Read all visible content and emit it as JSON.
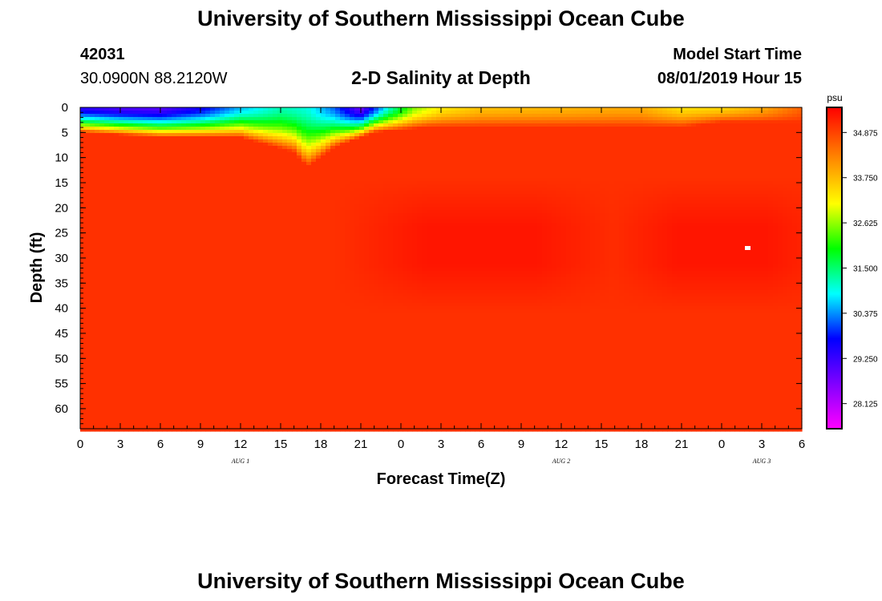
{
  "header": {
    "main_title": "University of Southern Mississippi Ocean Cube",
    "station_id": "42031",
    "coordinates": "30.0900N 88.2120W",
    "plot_title": "2-D Salinity at Depth",
    "start_label": "Model Start Time",
    "start_value": "08/01/2019 Hour 15",
    "footer_title": "University of Southern Mississippi Ocean Cube"
  },
  "chart_data": {
    "type": "heatmap",
    "title": "2-D Salinity at Depth",
    "xlabel": "Forecast Time(Z)",
    "ylabel": "Depth (ft)",
    "x_ticks": [
      "0",
      "3",
      "6",
      "9",
      "12",
      "15",
      "18",
      "21",
      "0",
      "3",
      "6",
      "9",
      "12",
      "15",
      "18",
      "21",
      "0",
      "3",
      "6"
    ],
    "x_range_hours": [
      0,
      54
    ],
    "date_labels": [
      {
        "label": "AUG 1",
        "hour": 12
      },
      {
        "label": "AUG 2",
        "hour": 36
      },
      {
        "label": "AUG 3",
        "hour": 51
      }
    ],
    "y_ticks": [
      0,
      5,
      10,
      15,
      20,
      25,
      30,
      35,
      40,
      45,
      50,
      55,
      60
    ],
    "y_range": [
      0,
      64
    ],
    "colorbar": {
      "unit": "psu",
      "min": 27.5,
      "max": 35.5,
      "tick_values": [
        28.125,
        29.25,
        30.375,
        31.5,
        32.625,
        33.75,
        34.875
      ],
      "tick_labels": [
        "28.125",
        "29.250",
        "30.375",
        "31.500",
        "32.625",
        "33.750",
        "34.875"
      ]
    },
    "surface_salinity_profile": [
      {
        "hour": 0,
        "psu": 29.4
      },
      {
        "hour": 3,
        "psu": 29.1
      },
      {
        "hour": 6,
        "psu": 29.0
      },
      {
        "hour": 9,
        "psu": 29.6
      },
      {
        "hour": 12,
        "psu": 30.6
      },
      {
        "hour": 15,
        "psu": 31.2
      },
      {
        "hour": 17,
        "psu": 31.0
      },
      {
        "hour": 19,
        "psu": 30.2
      },
      {
        "hour": 21,
        "psu": 28.8
      },
      {
        "hour": 23,
        "psu": 31.0
      },
      {
        "hour": 25,
        "psu": 32.6
      },
      {
        "hour": 27,
        "psu": 33.3
      },
      {
        "hour": 30,
        "psu": 33.7
      },
      {
        "hour": 36,
        "psu": 33.8
      },
      {
        "hour": 40,
        "psu": 33.9
      },
      {
        "hour": 42,
        "psu": 33.9
      },
      {
        "hour": 45,
        "psu": 33.4
      },
      {
        "hour": 48,
        "psu": 33.5
      },
      {
        "hour": 51,
        "psu": 33.9
      },
      {
        "hour": 54,
        "psu": 34.6
      }
    ],
    "mixed_layer_depth_ft": [
      {
        "hour": 0,
        "depth": 5
      },
      {
        "hour": 6,
        "depth": 6
      },
      {
        "hour": 12,
        "depth": 6
      },
      {
        "hour": 16,
        "depth": 9
      },
      {
        "hour": 17,
        "depth": 12
      },
      {
        "hour": 19,
        "depth": 8
      },
      {
        "hour": 22,
        "depth": 5
      },
      {
        "hour": 26,
        "depth": 4
      },
      {
        "hour": 36,
        "depth": 4
      },
      {
        "hour": 42,
        "depth": 4
      },
      {
        "hour": 45,
        "depth": 4
      },
      {
        "hour": 48,
        "depth": 3
      },
      {
        "hour": 54,
        "depth": 3
      }
    ],
    "deep_salinity_psu": 35.05,
    "salinity_maximum_psu": 35.3,
    "salinity_maximum_depth_ft": [
      20,
      35
    ],
    "salinity_maximum_hours": [
      [
        22,
        38
      ],
      [
        42,
        54
      ]
    ]
  }
}
